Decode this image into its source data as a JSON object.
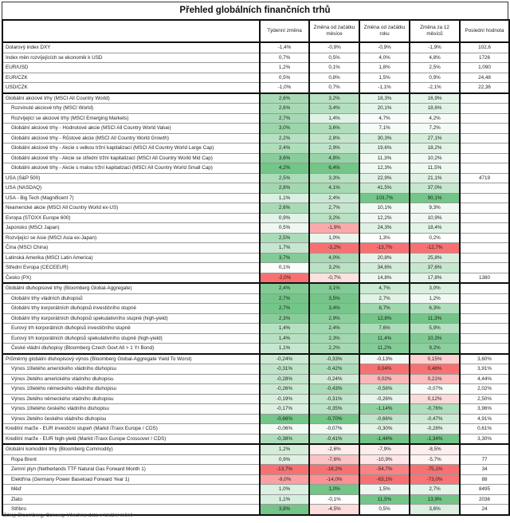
{
  "title": "Přehled globálních finančních trhů",
  "headers": [
    "",
    "Týdenní změna",
    "Změna od začátku měsíce",
    "Změna od začátku roku",
    "Změna za 12 měsíců",
    "Poslední hodnota"
  ],
  "colors": {
    "positive": "#63be7b",
    "negative": "#f8696b",
    "neutral": "#ffffff"
  },
  "sections": [
    {
      "heatmap": false,
      "invert": false,
      "rows": [
        {
          "label": "Dolarový index DXY",
          "indent": false,
          "values": [
            "-1,4%",
            "-0,9%",
            "-0,9%",
            "-1,9%"
          ],
          "last": "102,6"
        },
        {
          "label": "Index měn rozvíjejících se ekonomik k USD",
          "indent": false,
          "values": [
            "0,7%",
            "0,5%",
            "4,0%",
            "4,8%"
          ],
          "last": "1726"
        },
        {
          "label": "EUR/USD",
          "indent": false,
          "values": [
            "1,2%",
            "0,1%",
            "1,8%",
            "2,5%"
          ],
          "last": "1,090"
        },
        {
          "label": "EUR/CZK",
          "indent": false,
          "values": [
            "0,5%",
            "0,8%",
            "1,5%",
            "0,9%"
          ],
          "last": "24,48"
        },
        {
          "label": "USD/CZK",
          "indent": false,
          "values": [
            "-1,0%",
            "0,7%",
            "-1,1%",
            "-2,1%"
          ],
          "last": "22,36"
        }
      ]
    },
    {
      "heatmap": true,
      "invert": false,
      "rows": [
        {
          "label": "Globální akciové trhy (MSCI All Country World)",
          "indent": false,
          "values": [
            "2,6%",
            "3,2%",
            "18,3%",
            "16,9%"
          ],
          "last": ""
        },
        {
          "label": "Rozvinuté akciové trhy (MSCI World)",
          "indent": true,
          "values": [
            "2,6%",
            "3,4%",
            "20,1%",
            "18,6%"
          ],
          "last": ""
        },
        {
          "label": "Rozvíjející se akciové trhy (MSCI Emerging Markets)",
          "indent": true,
          "values": [
            "2,7%",
            "1,4%",
            "4,7%",
            "4,2%"
          ],
          "last": ""
        },
        {
          "label": "Globální akciové trhy - Hodnotové akcie (MSCI All Country World Value)",
          "indent": true,
          "values": [
            "3,0%",
            "3,6%",
            "7,1%",
            "7,2%"
          ],
          "last": ""
        },
        {
          "label": "Globální akciové trhy - Růstové akcie (MSCI All Country World Growth)",
          "indent": true,
          "values": [
            "2,2%",
            "2,8%",
            "30,3%",
            "27,1%"
          ],
          "last": ""
        },
        {
          "label": "Globální akciové trhy - Akcie s velkou tržní kapitalizací (MSCI All Country World Large Cap)",
          "indent": true,
          "values": [
            "2,4%",
            "2,9%",
            "19,6%",
            "18,2%"
          ],
          "last": ""
        },
        {
          "label": "Globální akciové trhy - Akcie se střední tržní kapitalizací (MSCI All Country World Mid Cap)",
          "indent": true,
          "values": [
            "3,6%",
            "4,8%",
            "11,3%",
            "10,2%"
          ],
          "last": ""
        },
        {
          "label": "Globální akciové trhy - Akcie s malou tržní kapitalizací (MSCI All Country World Small Cap)",
          "indent": true,
          "values": [
            "4,2%",
            "6,4%",
            "12,3%",
            "11,5%"
          ],
          "last": ""
        },
        {
          "label": "USA (S&P 500)",
          "indent": false,
          "values": [
            "2,5%",
            "3,3%",
            "22,9%",
            "21,1%"
          ],
          "last": "4719"
        },
        {
          "label": "USA (NASDAQ)",
          "indent": false,
          "values": [
            "2,8%",
            "4,1%",
            "41,5%",
            "37,0%"
          ],
          "last": ""
        },
        {
          "label": "USA - Big Tech (Magnificent 7)",
          "indent": false,
          "values": [
            "1,1%",
            "2,4%",
            "103,7%",
            "90,1%"
          ],
          "last": ""
        },
        {
          "label": "Neamerické akcie (MSCI All Country World ex-US)",
          "indent": false,
          "values": [
            "2,6%",
            "2,7%",
            "10,1%",
            "9,3%"
          ],
          "last": ""
        },
        {
          "label": "Evropa (STOXX Europe 600)",
          "indent": false,
          "values": [
            "0,9%",
            "3,2%",
            "12,2%",
            "10,9%"
          ],
          "last": ""
        },
        {
          "label": "Japonsko (MSCI Japan)",
          "indent": false,
          "values": [
            "0,5%",
            "-1,9%",
            "24,3%",
            "18,4%"
          ],
          "last": ""
        },
        {
          "label": "Rozvíjející se Asie (MSCI Asia ex-Japan)",
          "indent": false,
          "values": [
            "2,5%",
            "1,0%",
            "1,3%",
            "0,2%"
          ],
          "last": ""
        },
        {
          "label": "Čína (MSCI China)",
          "indent": false,
          "values": [
            "1,7%",
            "-3,2%",
            "-13,7%",
            "-12,7%"
          ],
          "last": ""
        },
        {
          "label": "Latinská Amerika (MSCI Latin America)",
          "indent": false,
          "values": [
            "3,7%",
            "4,0%",
            "20,8%",
            "25,8%"
          ],
          "last": ""
        },
        {
          "label": "Střední Evropa (CECEEUR)",
          "indent": false,
          "values": [
            "0,1%",
            "3,2%",
            "34,6%",
            "37,6%"
          ],
          "last": ""
        },
        {
          "label": "Česko (PX)",
          "indent": false,
          "values": [
            "-2,0%",
            "-0,7%",
            "14,8%",
            "17,8%"
          ],
          "last": "1380"
        }
      ]
    },
    {
      "heatmap": true,
      "invert": false,
      "rows": [
        {
          "label": "Globální dluhopisové trhy (Bloomberg Global-Aggregate)",
          "indent": false,
          "values": [
            "2,4%",
            "3,1%",
            "4,7%",
            "3,0%"
          ],
          "last": ""
        },
        {
          "label": "Globální trhy vládních dluhopisů",
          "indent": true,
          "values": [
            "2,7%",
            "3,5%",
            "2,7%",
            "1,2%"
          ],
          "last": ""
        },
        {
          "label": "Globální trhy korporátních dluhopisů investičního stupně",
          "indent": true,
          "values": [
            "2,7%",
            "3,4%",
            "8,7%",
            "6,3%"
          ],
          "last": ""
        },
        {
          "label": "Globální trhy korporátních dluhopisů spekulativního stupně (high-yield)",
          "indent": true,
          "values": [
            "2,3%",
            "2,9%",
            "12,8%",
            "11,3%"
          ],
          "last": ""
        },
        {
          "label": "Eurový trh korporátních dluhopisů investičního stupně",
          "indent": true,
          "values": [
            "1,4%",
            "2,4%",
            "7,6%",
            "5,9%"
          ],
          "last": ""
        },
        {
          "label": "Eurový trh korporátních dluhopisů spekulativního stupně (high-yield)",
          "indent": true,
          "values": [
            "1,4%",
            "2,3%",
            "11,4%",
            "10,3%"
          ],
          "last": ""
        },
        {
          "label": "České vládní dluhopisy (Bloomberg Czech Govt All > 1 Yr Bond)",
          "indent": true,
          "values": [
            "1,1%",
            "2,2%",
            "11,2%",
            "9,2%"
          ],
          "last": ""
        }
      ]
    },
    {
      "heatmap": true,
      "invert": true,
      "rows": [
        {
          "label": "Průměrný globální dluhopisový výnos (Bloomberg Global-Aggregate Yield To Worst)",
          "indent": false,
          "values": [
            "-0,24%",
            "-0,33%",
            "-0,13%",
            "0,15%"
          ],
          "last": "3,60%"
        },
        {
          "label": "Výnos 10letého amerického vládního dluhopisu",
          "indent": true,
          "values": [
            "-0,31%",
            "-0,42%",
            "0,04%",
            "0,46%"
          ],
          "last": "3,91%"
        },
        {
          "label": "Výnos 2letého amerického vládního dluhopisu",
          "indent": true,
          "values": [
            "-0,28%",
            "-0,24%",
            "0,02%",
            "0,21%"
          ],
          "last": "4,44%"
        },
        {
          "label": "Výnos 10letého německého vládního dluhopisu",
          "indent": true,
          "values": [
            "-0,26%",
            "-0,43%",
            "-0,56%",
            "-0,07%"
          ],
          "last": "2,02%"
        },
        {
          "label": "Výnos 2letého německého vládního dluhopisu",
          "indent": true,
          "values": [
            "-0,19%",
            "-0,31%",
            "-0,26%",
            "0,12%"
          ],
          "last": "2,50%"
        },
        {
          "label": "Výnos 10letého českého vládního dluhopisu",
          "indent": true,
          "values": [
            "-0,17%",
            "-0,35%",
            "-1,14%",
            "-0,76%"
          ],
          "last": "3,96%"
        },
        {
          "label": "Výnos 2letého českého vládního dluhopisu",
          "indent": true,
          "values": [
            "-0,66%",
            "-0,70%",
            "-0,66%",
            "-0,47%"
          ],
          "last": "4,91%"
        },
        {
          "label": "Kreditní marže - EUR investiční stupeň (Markit iTraxx Europe / CDS)",
          "indent": false,
          "values": [
            "-0,06%",
            "-0,07%",
            "-0,30%",
            "-0,28%"
          ],
          "last": "0,61%"
        },
        {
          "label": "Kreditní marže - EUR high-yield (Markit iTraxx Europe Crossover / CDS)",
          "indent": false,
          "values": [
            "-0,38%",
            "-0,41%",
            "-1,44%",
            "-1,34%"
          ],
          "last": "3,30%"
        }
      ]
    },
    {
      "heatmap": true,
      "invert": false,
      "rows": [
        {
          "label": "Globální komoditní trhy (Bloomberg Commodity)",
          "indent": false,
          "values": [
            "1,2%",
            "-2,6%",
            "-7,9%",
            "-8,5%"
          ],
          "last": ""
        },
        {
          "label": "Ropa Brent",
          "indent": true,
          "values": [
            "0,9%",
            "-7,6%",
            "-10,9%",
            "-5,7%"
          ],
          "last": "77"
        },
        {
          "label": "Zemní plyn (Netherlands TTF Natural Gas Forward Month 1)",
          "indent": true,
          "values": [
            "-13,7%",
            "-18,2%",
            "-54,7%",
            "-75,1%"
          ],
          "last": "34"
        },
        {
          "label": "Elektřina (Germany Power Baseload Forward Year 1)",
          "indent": true,
          "values": [
            "-9,0%",
            "-14,0%",
            "-63,1%",
            "-73,0%"
          ],
          "last": "88"
        },
        {
          "label": "Měď",
          "indent": true,
          "values": [
            "1,0%",
            "1,0%",
            "1,5%",
            "2,7%"
          ],
          "last": "8495"
        },
        {
          "label": "Zlato",
          "indent": true,
          "values": [
            "1,1%",
            "-0,1%",
            "11,5%",
            "13,9%"
          ],
          "last": "2036"
        },
        {
          "label": "Stříbro",
          "indent": true,
          "values": [
            "3,8%",
            "-4,5%",
            "0,5%",
            "3,6%"
          ],
          "last": "24"
        }
      ]
    }
  ],
  "footer": "Zdroj: Bloomberg, Conseq; Všechna data v lokální měně"
}
